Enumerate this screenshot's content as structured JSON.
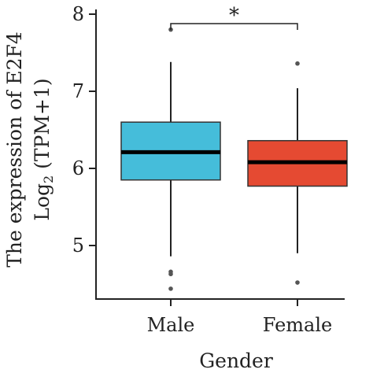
{
  "chart_data": {
    "type": "box",
    "ylabel_line1": "The expression of E2F4",
    "ylabel_line2_prefix": "Log",
    "ylabel_line2_sub": "2",
    "ylabel_line2_suffix": " (TPM+1)",
    "xlabel": "Gender",
    "ylim": [
      4.4,
      8.0
    ],
    "yticks": [
      {
        "value": 5,
        "label": "5"
      },
      {
        "value": 6,
        "label": "6"
      },
      {
        "value": 7,
        "label": "7"
      },
      {
        "value": 8,
        "label": "8"
      }
    ],
    "significance": "*",
    "groups": [
      {
        "name": "Male",
        "color": "#45bdda",
        "whisker_low": 4.86,
        "q1": 5.85,
        "median": 6.21,
        "q3": 6.6,
        "whisker_high": 7.38,
        "outliers": [
          7.8,
          4.66,
          4.63,
          4.44
        ]
      },
      {
        "name": "Female",
        "color": "#e54a32",
        "whisker_low": 4.9,
        "q1": 5.77,
        "median": 6.08,
        "q3": 6.36,
        "whisker_high": 7.04,
        "outliers": [
          7.36,
          4.52
        ]
      }
    ]
  }
}
